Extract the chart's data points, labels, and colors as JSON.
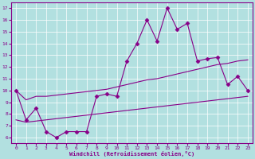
{
  "xlabel": "Windchill (Refroidissement éolien,°C)",
  "background_color": "#b2e0e0",
  "line_color": "#880088",
  "xlim": [
    -0.5,
    23.5
  ],
  "ylim": [
    5.5,
    17.5
  ],
  "yticks": [
    6,
    7,
    8,
    9,
    10,
    11,
    12,
    13,
    14,
    15,
    16,
    17
  ],
  "xticks": [
    0,
    1,
    2,
    3,
    4,
    5,
    6,
    7,
    8,
    9,
    10,
    11,
    12,
    13,
    14,
    15,
    16,
    17,
    18,
    19,
    20,
    21,
    22,
    23
  ],
  "main_line_x": [
    0,
    1,
    2,
    3,
    4,
    5,
    6,
    7,
    8,
    9,
    10,
    11,
    12,
    13,
    14,
    15,
    16,
    17,
    18,
    19,
    20,
    21,
    22,
    23
  ],
  "main_line_y": [
    10.0,
    7.5,
    8.5,
    6.5,
    6.0,
    6.5,
    6.5,
    6.5,
    9.5,
    9.7,
    9.5,
    12.5,
    14.0,
    16.0,
    14.2,
    17.0,
    15.2,
    15.7,
    12.5,
    12.7,
    12.8,
    10.5,
    11.2,
    10.0
  ],
  "upper_line_x": [
    0,
    1,
    2,
    3,
    4,
    5,
    6,
    7,
    8,
    9,
    10,
    11,
    12,
    13,
    14,
    15,
    16,
    17,
    18,
    19,
    20,
    21,
    22,
    23
  ],
  "upper_line_y": [
    10.0,
    9.2,
    9.5,
    9.5,
    9.6,
    9.7,
    9.8,
    9.9,
    10.0,
    10.1,
    10.3,
    10.5,
    10.7,
    10.9,
    11.0,
    11.2,
    11.4,
    11.6,
    11.8,
    12.0,
    12.2,
    12.3,
    12.5,
    12.6
  ],
  "lower_line_x": [
    0,
    1,
    2,
    3,
    4,
    5,
    6,
    7,
    8,
    9,
    10,
    11,
    12,
    13,
    14,
    15,
    16,
    17,
    18,
    19,
    20,
    21,
    22,
    23
  ],
  "lower_line_y": [
    7.5,
    7.3,
    7.4,
    7.5,
    7.6,
    7.7,
    7.8,
    7.9,
    8.0,
    8.1,
    8.2,
    8.3,
    8.4,
    8.5,
    8.6,
    8.7,
    8.8,
    8.9,
    9.0,
    9.1,
    9.2,
    9.3,
    9.4,
    9.5
  ]
}
